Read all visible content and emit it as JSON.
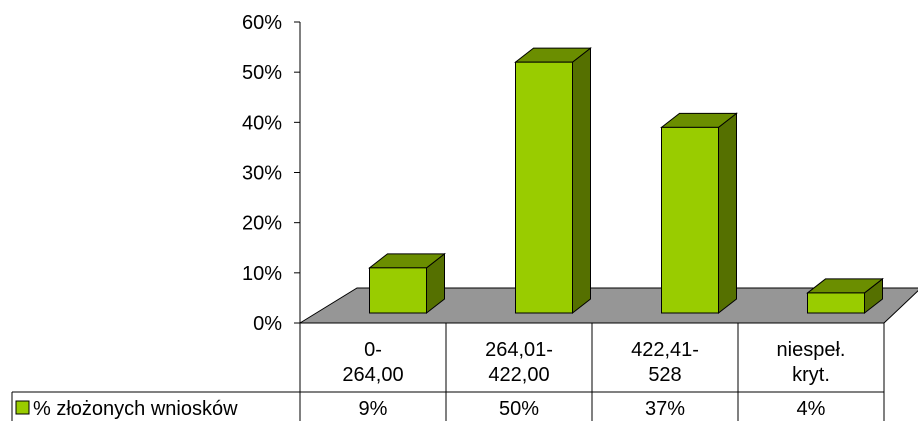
{
  "chart_data": {
    "type": "bar",
    "categories": [
      [
        "0-",
        "264,00"
      ],
      [
        "264,01-",
        "422,00"
      ],
      [
        "422,41-",
        "528"
      ],
      [
        "niespeł.",
        "kryt."
      ]
    ],
    "series": [
      {
        "name": "% złożonych wniosków",
        "values": [
          9,
          50,
          37,
          4
        ],
        "table_labels": [
          "9%",
          "50%",
          "37%",
          "4%"
        ]
      }
    ],
    "yticks": [
      "0%",
      "10%",
      "20%",
      "30%",
      "40%",
      "50%",
      "60%"
    ],
    "ylim": [
      0,
      60
    ],
    "grid": false,
    "legend": "bottom-left (in data table)",
    "colors": {
      "bar_front": "#99cc00",
      "bar_top": "#6b8e00",
      "bar_side": "#557000",
      "floor": "#969696"
    }
  }
}
